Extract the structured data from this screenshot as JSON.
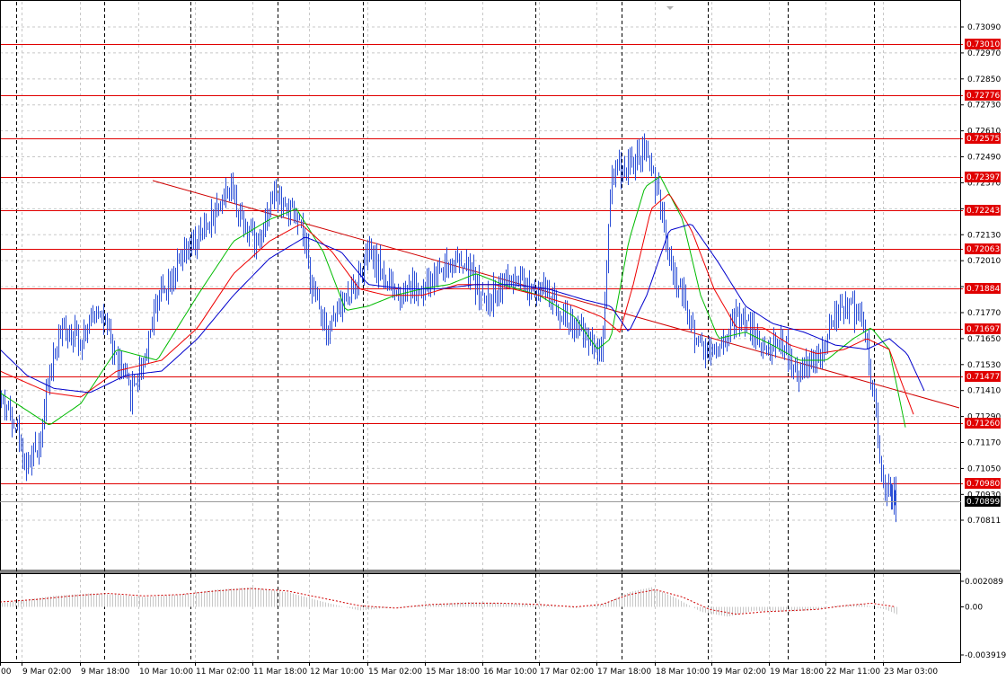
{
  "chart_data": {
    "type": "candlestick",
    "main_panel": {
      "y_ticks": [
        "0.73090",
        "0.72970",
        "0.72850",
        "0.72730",
        "0.72610",
        "0.72490",
        "0.72370",
        "0.72250",
        "0.72130",
        "0.72010",
        "0.71890",
        "0.71770",
        "0.71650",
        "0.71530",
        "0.71410",
        "0.71290",
        "0.71170",
        "0.71050",
        "0.70930",
        "0.70811"
      ],
      "ylim": [
        0.70811,
        0.7315
      ],
      "horizontal_levels": [
        {
          "label": "0.73010",
          "value": 0.7301
        },
        {
          "label": "0.72776",
          "value": 0.72776
        },
        {
          "label": "0.72575",
          "value": 0.72575
        },
        {
          "label": "0.72397",
          "value": 0.72397
        },
        {
          "label": "0.72243",
          "value": 0.72243
        },
        {
          "label": "0.72063",
          "value": 0.72063
        },
        {
          "label": "0.71884",
          "value": 0.71884
        },
        {
          "label": "0.71697",
          "value": 0.71697
        },
        {
          "label": "0.71477",
          "value": 0.71477
        },
        {
          "label": "0.71260",
          "value": 0.7126
        },
        {
          "label": "0.70980",
          "value": 0.7098
        }
      ],
      "current_price": {
        "label": "0.70899",
        "value": 0.70899
      },
      "trendline": {
        "from": [
          170,
          0.7238
        ],
        "to": [
          1068,
          0.7133
        ]
      },
      "price_anchors": [
        [
          0,
          0.7138
        ],
        [
          15,
          0.7128
        ],
        [
          30,
          0.7105
        ],
        [
          45,
          0.712
        ],
        [
          55,
          0.715
        ],
        [
          70,
          0.717
        ],
        [
          90,
          0.7165
        ],
        [
          110,
          0.718
        ],
        [
          125,
          0.716
        ],
        [
          145,
          0.714
        ],
        [
          160,
          0.7155
        ],
        [
          175,
          0.7185
        ],
        [
          200,
          0.72
        ],
        [
          220,
          0.721
        ],
        [
          240,
          0.7225
        ],
        [
          255,
          0.7235
        ],
        [
          270,
          0.722
        ],
        [
          285,
          0.721
        ],
        [
          305,
          0.7232
        ],
        [
          320,
          0.7225
        ],
        [
          335,
          0.7215
        ],
        [
          350,
          0.7185
        ],
        [
          365,
          0.717
        ],
        [
          380,
          0.718
        ],
        [
          395,
          0.719
        ],
        [
          410,
          0.7205
        ],
        [
          425,
          0.7195
        ],
        [
          440,
          0.7185
        ],
        [
          455,
          0.719
        ],
        [
          470,
          0.7185
        ],
        [
          490,
          0.7198
        ],
        [
          510,
          0.72
        ],
        [
          525,
          0.7195
        ],
        [
          540,
          0.718
        ],
        [
          560,
          0.7192
        ],
        [
          580,
          0.7188
        ],
        [
          600,
          0.719
        ],
        [
          620,
          0.718
        ],
        [
          640,
          0.717
        ],
        [
          655,
          0.7165
        ],
        [
          670,
          0.716
        ],
        [
          680,
          0.724
        ],
        [
          695,
          0.7245
        ],
        [
          710,
          0.7248
        ],
        [
          722,
          0.725
        ],
        [
          735,
          0.7225
        ],
        [
          745,
          0.72
        ],
        [
          760,
          0.7185
        ],
        [
          775,
          0.7165
        ],
        [
          790,
          0.7158
        ],
        [
          805,
          0.7165
        ],
        [
          820,
          0.7175
        ],
        [
          835,
          0.717
        ],
        [
          850,
          0.716
        ],
        [
          870,
          0.7165
        ],
        [
          885,
          0.7148
        ],
        [
          900,
          0.7152
        ],
        [
          915,
          0.7158
        ],
        [
          930,
          0.7178
        ],
        [
          945,
          0.718
        ],
        [
          960,
          0.7175
        ],
        [
          972,
          0.714
        ],
        [
          982,
          0.71
        ],
        [
          992,
          0.7092
        ],
        [
          998,
          0.709
        ]
      ],
      "moving_averages": [
        {
          "color": "#00bb00",
          "anchors": [
            [
              0,
              0.714
            ],
            [
              55,
              0.7125
            ],
            [
              90,
              0.7135
            ],
            [
              130,
              0.716
            ],
            [
              175,
              0.7155
            ],
            [
              220,
              0.7185
            ],
            [
              260,
              0.721
            ],
            [
              300,
              0.722
            ],
            [
              330,
              0.7225
            ],
            [
              360,
              0.7205
            ],
            [
              385,
              0.7178
            ],
            [
              410,
              0.718
            ],
            [
              440,
              0.7185
            ],
            [
              470,
              0.7188
            ],
            [
              500,
              0.719
            ],
            [
              530,
              0.7195
            ],
            [
              560,
              0.719
            ],
            [
              600,
              0.7185
            ],
            [
              640,
              0.7175
            ],
            [
              665,
              0.716
            ],
            [
              680,
              0.7165
            ],
            [
              700,
              0.721
            ],
            [
              718,
              0.7235
            ],
            [
              735,
              0.724
            ],
            [
              760,
              0.722
            ],
            [
              780,
              0.7185
            ],
            [
              800,
              0.7165
            ],
            [
              830,
              0.7168
            ],
            [
              860,
              0.7162
            ],
            [
              890,
              0.7155
            ],
            [
              920,
              0.7155
            ],
            [
              950,
              0.7165
            ],
            [
              970,
              0.717
            ],
            [
              990,
              0.716
            ],
            [
              1010,
              0.712
            ]
          ]
        },
        {
          "color": "#ee0000",
          "anchors": [
            [
              0,
              0.715
            ],
            [
              55,
              0.714
            ],
            [
              90,
              0.7138
            ],
            [
              130,
              0.715
            ],
            [
              180,
              0.7155
            ],
            [
              220,
              0.717
            ],
            [
              260,
              0.7195
            ],
            [
              300,
              0.721
            ],
            [
              335,
              0.7218
            ],
            [
              370,
              0.7205
            ],
            [
              400,
              0.7188
            ],
            [
              430,
              0.7185
            ],
            [
              470,
              0.7185
            ],
            [
              510,
              0.719
            ],
            [
              550,
              0.719
            ],
            [
              600,
              0.7185
            ],
            [
              640,
              0.718
            ],
            [
              670,
              0.7175
            ],
            [
              690,
              0.7168
            ],
            [
              705,
              0.719
            ],
            [
              725,
              0.7225
            ],
            [
              745,
              0.7232
            ],
            [
              770,
              0.7215
            ],
            [
              795,
              0.7188
            ],
            [
              820,
              0.717
            ],
            [
              850,
              0.717
            ],
            [
              880,
              0.7162
            ],
            [
              910,
              0.7158
            ],
            [
              940,
              0.716
            ],
            [
              965,
              0.7165
            ],
            [
              990,
              0.716
            ],
            [
              1017,
              0.713
            ]
          ]
        },
        {
          "color": "#0000cc",
          "anchors": [
            [
              0,
              0.716
            ],
            [
              30,
              0.7148
            ],
            [
              60,
              0.7142
            ],
            [
              100,
              0.714
            ],
            [
              140,
              0.7148
            ],
            [
              180,
              0.715
            ],
            [
              220,
              0.7165
            ],
            [
              260,
              0.7185
            ],
            [
              300,
              0.7202
            ],
            [
              340,
              0.7212
            ],
            [
              380,
              0.7205
            ],
            [
              410,
              0.719
            ],
            [
              450,
              0.7188
            ],
            [
              490,
              0.7188
            ],
            [
              530,
              0.719
            ],
            [
              570,
              0.719
            ],
            [
              610,
              0.7188
            ],
            [
              650,
              0.7183
            ],
            [
              680,
              0.718
            ],
            [
              700,
              0.7168
            ],
            [
              720,
              0.7185
            ],
            [
              745,
              0.7215
            ],
            [
              770,
              0.7218
            ],
            [
              800,
              0.72
            ],
            [
              830,
              0.718
            ],
            [
              860,
              0.7172
            ],
            [
              895,
              0.7168
            ],
            [
              930,
              0.7162
            ],
            [
              965,
              0.716
            ],
            [
              990,
              0.7165
            ],
            [
              1010,
              0.7158
            ],
            [
              1030,
              0.714
            ]
          ]
        }
      ]
    },
    "sub_panel": {
      "y_ticks": [
        "0.002089",
        "0.00",
        "-0.003919"
      ],
      "ylim": [
        -0.003919,
        0.002089
      ],
      "hist_anchors": [
        [
          0,
          0.0003
        ],
        [
          30,
          0.0006
        ],
        [
          60,
          0.0009
        ],
        [
          100,
          0.0011
        ],
        [
          130,
          0.001
        ],
        [
          160,
          0.0008
        ],
        [
          200,
          0.001
        ],
        [
          240,
          0.0014
        ],
        [
          280,
          0.0016
        ],
        [
          320,
          0.0012
        ],
        [
          360,
          0.0004
        ],
        [
          400,
          -0.0003
        ],
        [
          440,
          0.0
        ],
        [
          480,
          0.0002
        ],
        [
          520,
          0.0004
        ],
        [
          560,
          0.0003
        ],
        [
          600,
          0.0002
        ],
        [
          640,
          -0.0001
        ],
        [
          670,
          0.0002
        ],
        [
          700,
          0.0012
        ],
        [
          725,
          0.0016
        ],
        [
          750,
          0.0008
        ],
        [
          780,
          -0.0004
        ],
        [
          810,
          -0.0008
        ],
        [
          840,
          -0.0003
        ],
        [
          870,
          -0.0004
        ],
        [
          900,
          -0.0003
        ],
        [
          930,
          0.0001
        ],
        [
          960,
          0.0002
        ],
        [
          985,
          -0.0002
        ],
        [
          998,
          -0.0006
        ]
      ],
      "signal_anchors": [
        [
          0,
          0.0004
        ],
        [
          40,
          0.0006
        ],
        [
          80,
          0.0009
        ],
        [
          120,
          0.0011
        ],
        [
          160,
          0.0009
        ],
        [
          200,
          0.001
        ],
        [
          240,
          0.0013
        ],
        [
          280,
          0.0015
        ],
        [
          320,
          0.0013
        ],
        [
          360,
          0.0007
        ],
        [
          400,
          0.0001
        ],
        [
          440,
          -0.0001
        ],
        [
          480,
          0.0002
        ],
        [
          520,
          0.0003
        ],
        [
          560,
          0.0003
        ],
        [
          600,
          0.0002
        ],
        [
          640,
          0.0
        ],
        [
          670,
          0.0002
        ],
        [
          700,
          0.001
        ],
        [
          730,
          0.0014
        ],
        [
          760,
          0.0008
        ],
        [
          790,
          -0.0002
        ],
        [
          820,
          -0.0006
        ],
        [
          850,
          -0.0004
        ],
        [
          880,
          -0.0003
        ],
        [
          910,
          -0.0002
        ],
        [
          940,
          0.0001
        ],
        [
          970,
          0.0003
        ],
        [
          998,
          0.0
        ]
      ]
    },
    "x_labels": [
      {
        "label": "00",
        "x": 0
      },
      {
        "label": "9 Mar 02:00",
        "x": 24
      },
      {
        "label": "9 Mar 18:00",
        "x": 89
      },
      {
        "label": "10 Mar 10:00",
        "x": 154
      },
      {
        "label": "11 Mar 02:00",
        "x": 217
      },
      {
        "label": "11 Mar 18:00",
        "x": 281
      },
      {
        "label": "12 Mar 10:00",
        "x": 344
      },
      {
        "label": "15 Mar 02:00",
        "x": 409
      },
      {
        "label": "15 Mar 18:00",
        "x": 473
      },
      {
        "label": "16 Mar 10:00",
        "x": 537
      },
      {
        "label": "17 Mar 02:00",
        "x": 600
      },
      {
        "label": "17 Mar 18:00",
        "x": 664
      },
      {
        "label": "18 Mar 10:00",
        "x": 729
      },
      {
        "label": "19 Mar 02:00",
        "x": 792
      },
      {
        "label": "19 Mar 18:00",
        "x": 856
      },
      {
        "label": "22 Mar 11:00",
        "x": 919
      },
      {
        "label": "23 Mar 03:00",
        "x": 983
      }
    ],
    "x_range": [
      0,
      1068
    ],
    "vertical_day_separators": [
      18,
      116,
      212,
      309,
      404,
      596,
      692,
      788,
      877,
      973
    ],
    "grid": true,
    "colors": {
      "background": "#ffffff",
      "candles": "#2b4fd6",
      "levels": "#e00000",
      "trendline": "#d00000",
      "grid": "#c8c8c8",
      "separator": "#000000",
      "axis_text": "#000000",
      "current_price_bg": "#000000",
      "oscillator_hist": "#c8c8c8",
      "oscillator_signal": "#d00000"
    }
  }
}
